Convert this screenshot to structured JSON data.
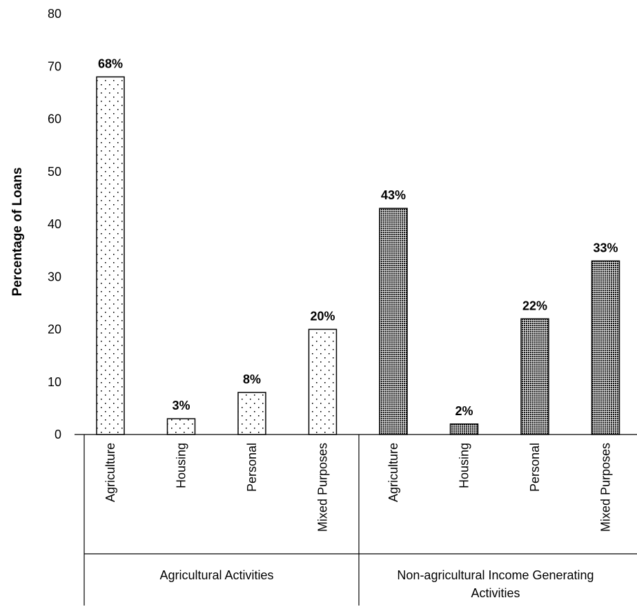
{
  "chart_data": {
    "type": "bar",
    "title": "",
    "ylabel": "Percentage of Loans",
    "xlabel": "",
    "ylim": [
      0,
      80
    ],
    "yticks": [
      0,
      10,
      20,
      30,
      40,
      50,
      60,
      70,
      80
    ],
    "grid": false,
    "legend": "none",
    "groups": [
      {
        "name": "Agricultural Activities",
        "pattern": "sparse-dots",
        "categories": [
          "Agriculture",
          "Housing",
          "Personal",
          "Mixed Purposes"
        ],
        "values": [
          68,
          3,
          8,
          20
        ],
        "labels": [
          "68%",
          "3%",
          "8%",
          "20%"
        ]
      },
      {
        "name": "Non-agricultural Income Generating Activities",
        "pattern": "dense-dots",
        "categories": [
          "Agriculture",
          "Housing",
          "Personal",
          "Mixed Purposes"
        ],
        "values": [
          43,
          2,
          22,
          33
        ],
        "labels": [
          "43%",
          "2%",
          "22%",
          "33%"
        ]
      }
    ]
  }
}
